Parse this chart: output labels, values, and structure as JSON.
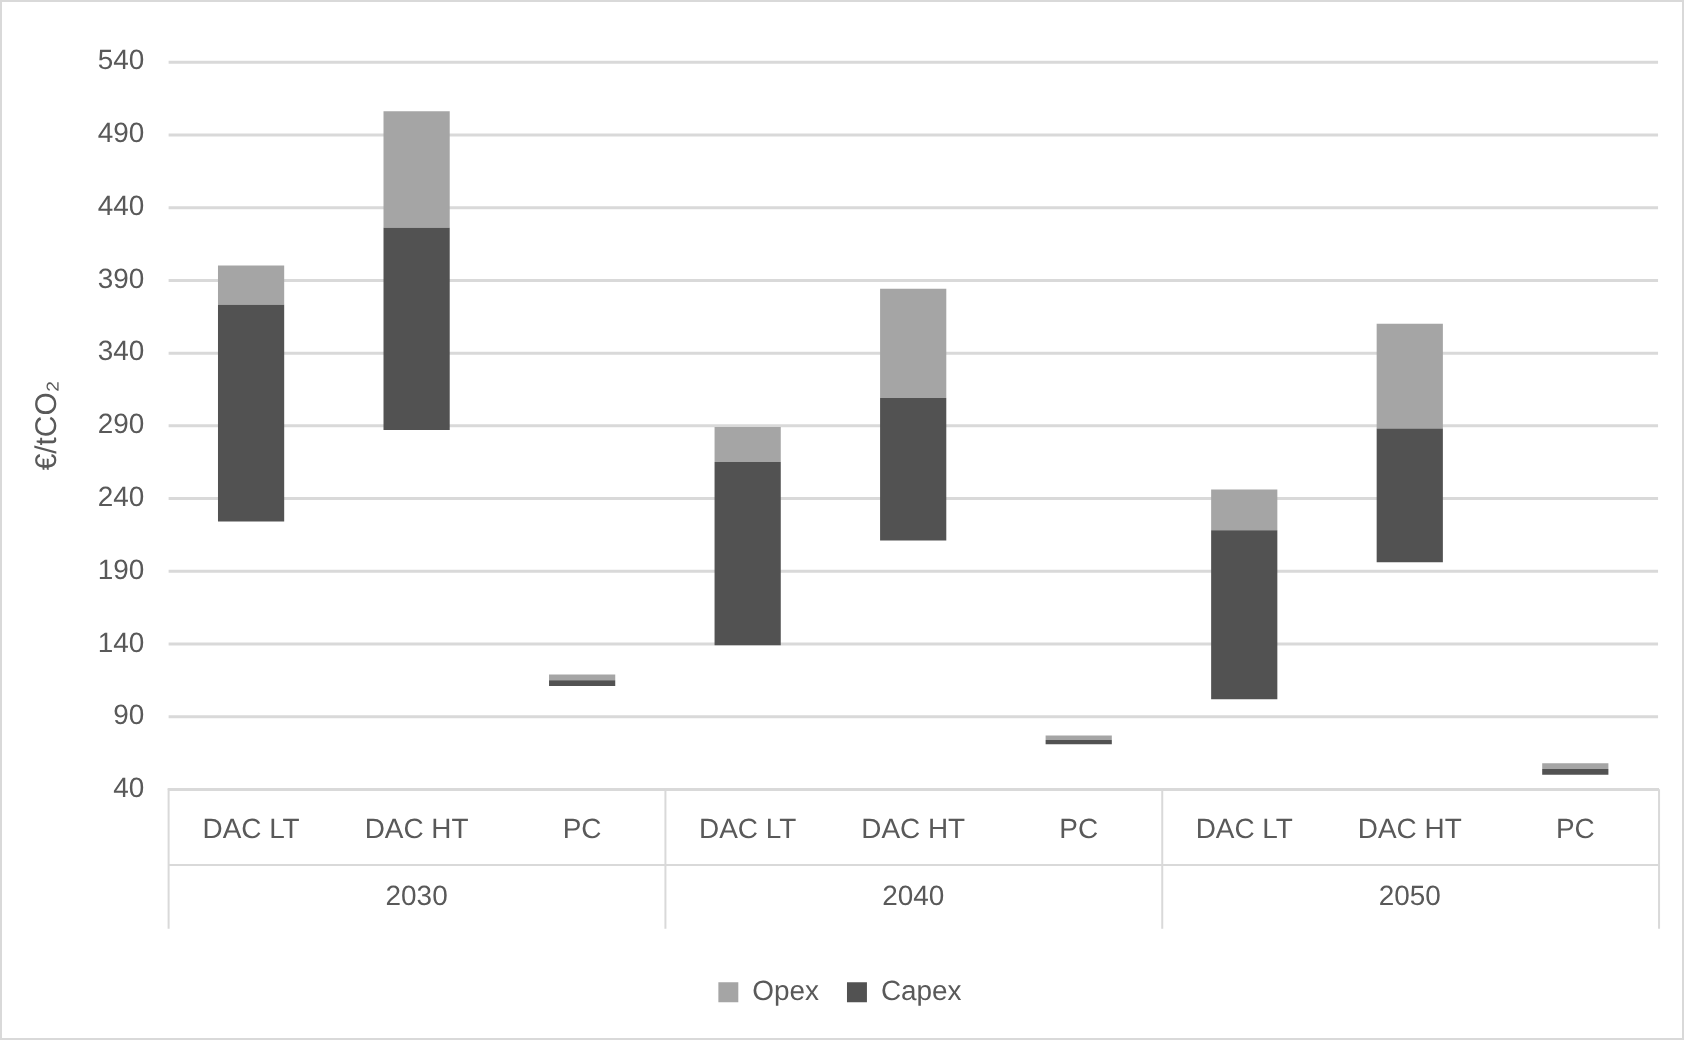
{
  "chart_data": {
    "type": "bar",
    "ylabel": "€/tCO₂",
    "categories": [
      "DAC LT",
      "DAC HT",
      "PC",
      "DAC LT",
      "DAC HT",
      "PC",
      "DAC LT",
      "DAC HT",
      "PC"
    ],
    "annotations": [
      "2030",
      "2040",
      "2050"
    ],
    "series": [
      {
        "name": "Capex",
        "color": "#525252",
        "base": [
          224,
          287,
          111,
          139,
          211,
          71,
          102,
          196,
          50
        ],
        "values": [
          149,
          139,
          4,
          126,
          98,
          3,
          116,
          92,
          4
        ]
      },
      {
        "name": "Opex",
        "color": "#a5a5a5",
        "base": [
          373,
          426,
          115,
          265,
          309,
          74,
          218,
          288,
          54
        ],
        "values": [
          27,
          80,
          4,
          24,
          75,
          3,
          28,
          72,
          4
        ]
      }
    ],
    "ylim": [
      40,
      540
    ],
    "yticks": [
      40,
      90,
      140,
      190,
      240,
      290,
      340,
      390,
      440,
      490,
      540
    ],
    "grid": "y",
    "legend": "bottom"
  }
}
